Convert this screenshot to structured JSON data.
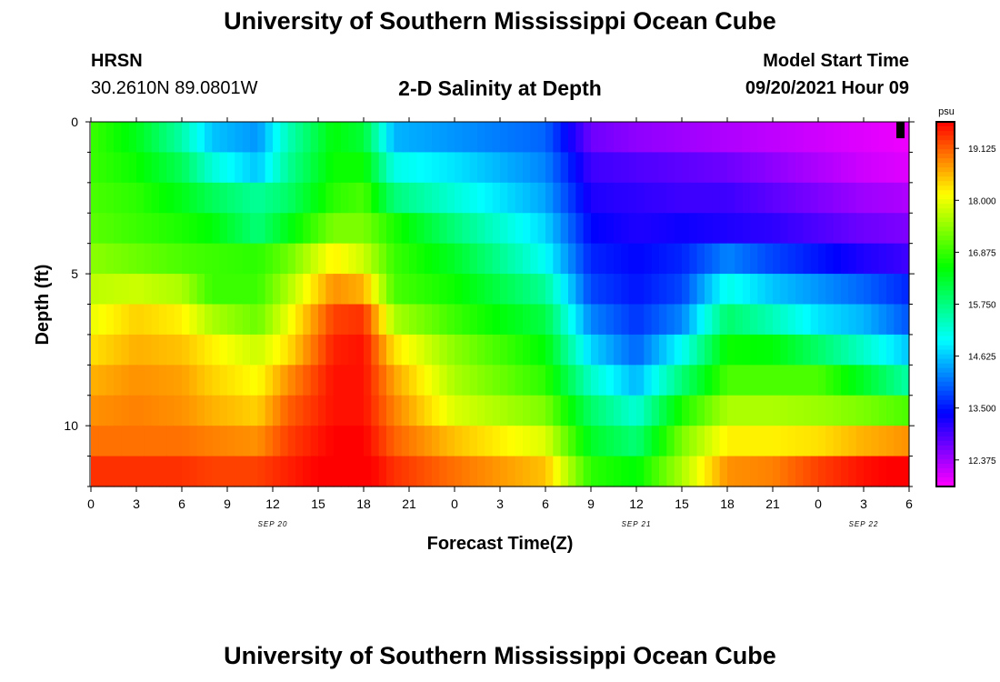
{
  "header": {
    "main_title": "University of Southern Mississippi Ocean Cube",
    "station": "HRSN",
    "coordinates": "30.2610N  89.0801W",
    "plot_title": "2-D Salinity at Depth",
    "model_start_label": "Model Start Time",
    "model_start_value": "09/20/2021 Hour 09"
  },
  "footer": {
    "main_title": "University of Southern Mississippi Ocean Cube"
  },
  "chart_data": {
    "type": "heatmap",
    "title": "2-D Salinity at Depth",
    "xlabel": "Forecast Time(Z)",
    "ylabel": "Depth (ft)",
    "x_hours": [
      0,
      54
    ],
    "x_tick_labels": [
      "0",
      "3",
      "6",
      "9",
      "12",
      "15",
      "18",
      "21",
      "0",
      "3",
      "6",
      "9",
      "12",
      "15",
      "18",
      "21",
      "0",
      "3",
      "6"
    ],
    "date_labels": [
      {
        "label": "SEP 20",
        "hour": 12
      },
      {
        "label": "SEP 21",
        "hour": 36
      },
      {
        "label": "SEP 22",
        "hour": 51
      }
    ],
    "ylim": [
      0,
      12
    ],
    "y_tick_labels": [
      "0",
      "5",
      "10"
    ],
    "y_tick_values": [
      0,
      5,
      10
    ],
    "colorbar": {
      "unit": "psu",
      "min": 11.8,
      "max": 19.7,
      "tick_values": [
        12.375,
        13.5,
        14.625,
        15.75,
        16.875,
        18.0,
        19.125
      ],
      "tick_labels": [
        "12.375",
        "13.500",
        "14.625",
        "15.750",
        "16.875",
        "18.000",
        "19.125"
      ]
    },
    "depth_levels_ft": [
      0.5,
      1.5,
      2.5,
      3.5,
      4.5,
      5.5,
      6.5,
      7.5,
      8.5,
      9.5,
      10.5,
      11.5
    ],
    "time_knots_hours": [
      0,
      3,
      6,
      8,
      11,
      13,
      16,
      18,
      20,
      24,
      30,
      33,
      36,
      39,
      42,
      45,
      48,
      51,
      54
    ],
    "salinity_knots": [
      [
        16.9,
        16.4,
        15.5,
        14.6,
        14.3,
        15.4,
        16.5,
        16.2,
        14.5,
        14.3,
        14.0,
        12.7,
        12.5,
        12.4,
        12.3,
        12.2,
        12.1,
        12.0,
        11.9
      ],
      [
        16.9,
        16.6,
        16.0,
        15.2,
        14.6,
        15.6,
        16.6,
        16.6,
        15.1,
        14.8,
        14.2,
        13.0,
        12.9,
        12.8,
        12.7,
        12.5,
        12.3,
        12.1,
        12.0
      ],
      [
        17.0,
        16.8,
        16.4,
        16.0,
        15.6,
        15.9,
        16.8,
        17.0,
        15.8,
        15.2,
        14.4,
        13.2,
        13.1,
        13.0,
        13.0,
        12.8,
        12.6,
        12.4,
        12.3
      ],
      [
        17.1,
        16.9,
        16.7,
        16.5,
        15.8,
        16.4,
        17.3,
        17.3,
        16.7,
        15.8,
        14.7,
        13.4,
        13.2,
        13.3,
        13.2,
        13.1,
        12.9,
        12.7,
        12.6
      ],
      [
        17.4,
        17.2,
        17.0,
        16.9,
        16.8,
        17.2,
        18.2,
        17.8,
        16.9,
        16.3,
        15.0,
        13.6,
        13.4,
        13.6,
        14.2,
        13.8,
        13.5,
        13.2,
        13.0
      ],
      [
        17.7,
        17.8,
        17.6,
        16.9,
        16.9,
        17.6,
        18.8,
        18.6,
        17.0,
        16.6,
        15.6,
        13.8,
        13.5,
        13.8,
        15.1,
        14.6,
        14.3,
        14.0,
        13.6
      ],
      [
        18.0,
        18.4,
        18.2,
        17.6,
        17.2,
        18.0,
        19.3,
        19.4,
        17.6,
        16.9,
        16.1,
        14.2,
        13.7,
        14.2,
        15.9,
        15.4,
        14.8,
        14.5,
        13.9
      ],
      [
        18.3,
        18.6,
        18.5,
        18.2,
        17.8,
        18.3,
        19.5,
        19.6,
        18.3,
        17.4,
        16.5,
        14.7,
        14.0,
        15.0,
        16.6,
        16.5,
        15.9,
        15.3,
        14.6
      ],
      [
        18.6,
        18.8,
        18.7,
        18.4,
        18.1,
        18.8,
        19.6,
        19.6,
        18.7,
        17.6,
        16.8,
        15.3,
        14.5,
        15.8,
        17.0,
        17.0,
        17.0,
        16.3,
        15.5
      ],
      [
        18.8,
        18.9,
        18.8,
        18.6,
        18.4,
        19.1,
        19.6,
        19.6,
        18.9,
        17.9,
        17.3,
        15.9,
        15.2,
        16.7,
        17.6,
        17.6,
        17.5,
        17.3,
        17.0
      ],
      [
        19.0,
        19.0,
        19.0,
        18.9,
        18.8,
        19.3,
        19.7,
        19.7,
        19.1,
        18.5,
        17.9,
        16.3,
        15.8,
        17.3,
        18.2,
        18.2,
        18.3,
        18.6,
        18.8
      ],
      [
        19.4,
        19.4,
        19.4,
        19.3,
        19.3,
        19.5,
        19.8,
        19.8,
        19.4,
        19.0,
        18.5,
        16.8,
        16.5,
        17.6,
        18.8,
        18.9,
        19.3,
        19.6,
        19.8
      ]
    ]
  }
}
